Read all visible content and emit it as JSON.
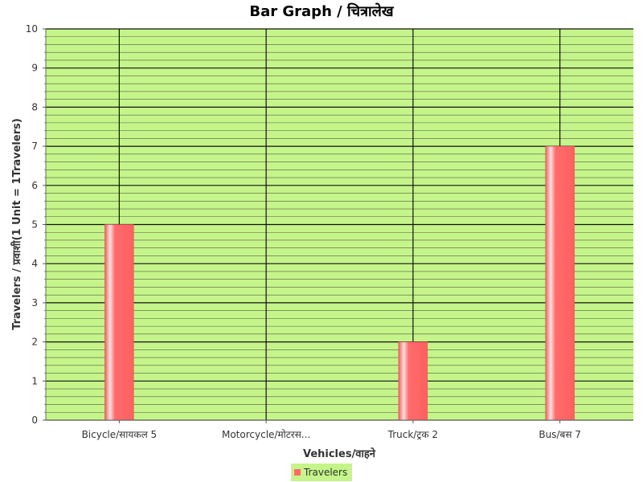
{
  "chart_data": {
    "type": "bar",
    "title": "Bar Graph / चित्रालेख",
    "xlabel": "Vehicles/वाहने",
    "ylabel": "Travelers / प्रवाशी(1 Unit  = 1Travelers)",
    "categories": [
      "Bicycle/सायकल 5",
      "Motorcycle/मोटरस...",
      "Truck/ट्रक 2",
      "Bus/बस 7"
    ],
    "series": [
      {
        "name": "Travelers",
        "values": [
          5,
          0,
          2,
          7
        ]
      }
    ],
    "ylim": [
      0,
      10
    ],
    "yticks": [
      "0",
      "1",
      "2",
      "3",
      "4",
      "5",
      "6",
      "7",
      "8",
      "9",
      "10"
    ],
    "grid": true,
    "legend_position": "bottom-center",
    "colors": {
      "plot_background": "#c5f58a",
      "bar": "#ff6b6b",
      "bar_highlight": "#ffd8d8",
      "grid_major": "#111111",
      "grid_minor": "#2a2a2a",
      "legend_background": "#c5f58a"
    }
  }
}
